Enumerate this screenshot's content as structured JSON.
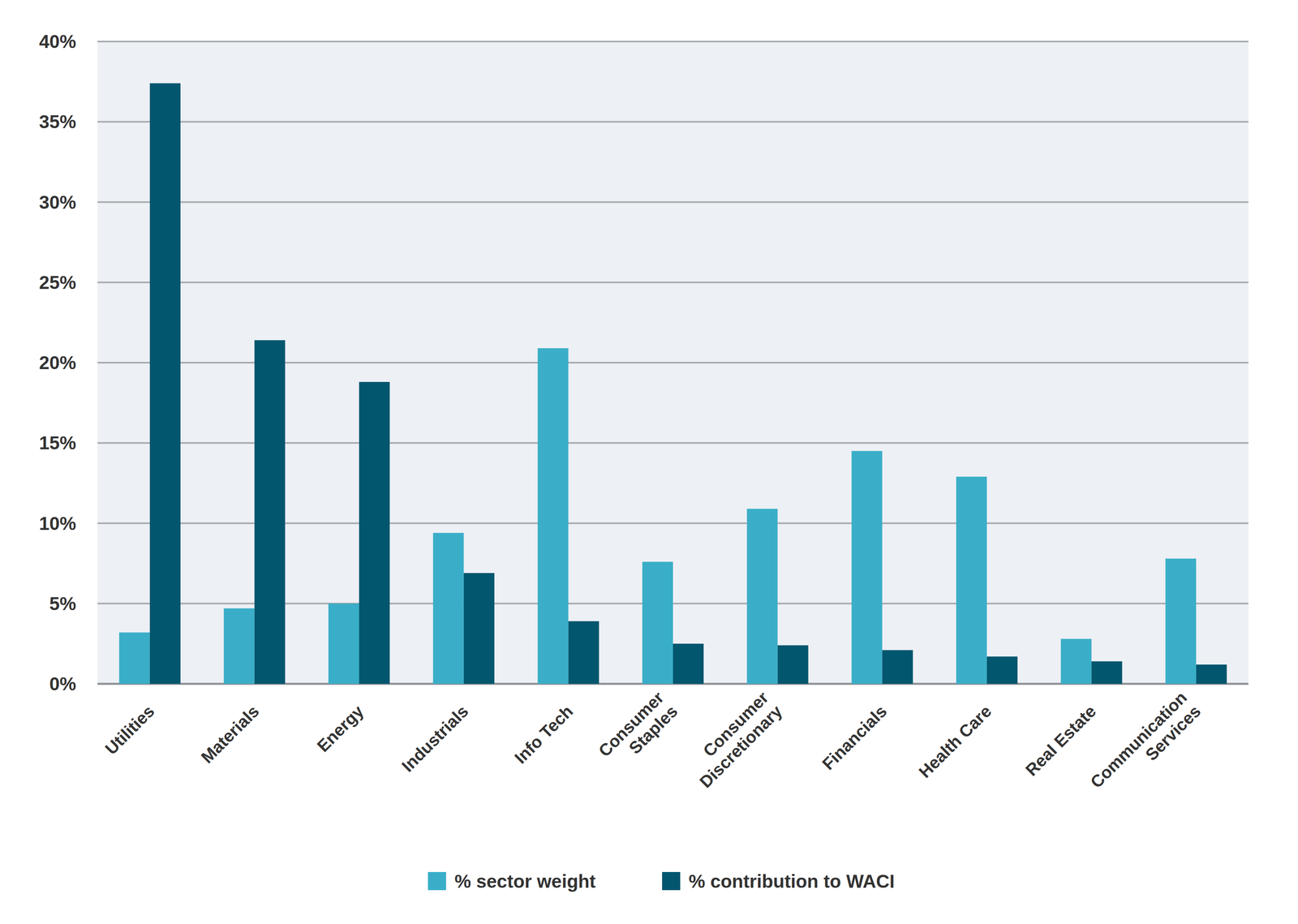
{
  "chart_data": {
    "type": "bar",
    "categories": [
      "Utilities",
      "Materials",
      "Energy",
      "Industrials",
      "Info Tech",
      "Consumer\nStaples",
      "Consumer\nDiscretionary",
      "Financials",
      "Health Care",
      "Real Estate",
      "Communication\nServices"
    ],
    "series": [
      {
        "name": "% sector weight",
        "color": "#3aaec8",
        "values": [
          3.2,
          4.7,
          5.0,
          9.4,
          20.9,
          7.6,
          10.9,
          14.5,
          12.9,
          2.8,
          7.8
        ]
      },
      {
        "name": "% contribution to WACI",
        "color": "#02566e",
        "values": [
          37.4,
          21.4,
          18.8,
          6.9,
          3.9,
          2.5,
          2.4,
          2.1,
          1.7,
          1.4,
          1.2
        ]
      }
    ],
    "ylim": [
      0,
      40
    ],
    "yticks": [
      {
        "value": 0,
        "label": "0%"
      },
      {
        "value": 5,
        "label": "5%"
      },
      {
        "value": 10,
        "label": "10%"
      },
      {
        "value": 15,
        "label": "15%"
      },
      {
        "value": 20,
        "label": "20%"
      },
      {
        "value": 25,
        "label": "25%"
      },
      {
        "value": 30,
        "label": "30%"
      },
      {
        "value": 35,
        "label": "35%"
      },
      {
        "value": 40,
        "label": "40%"
      }
    ],
    "grid": true,
    "legend": "bottom"
  }
}
